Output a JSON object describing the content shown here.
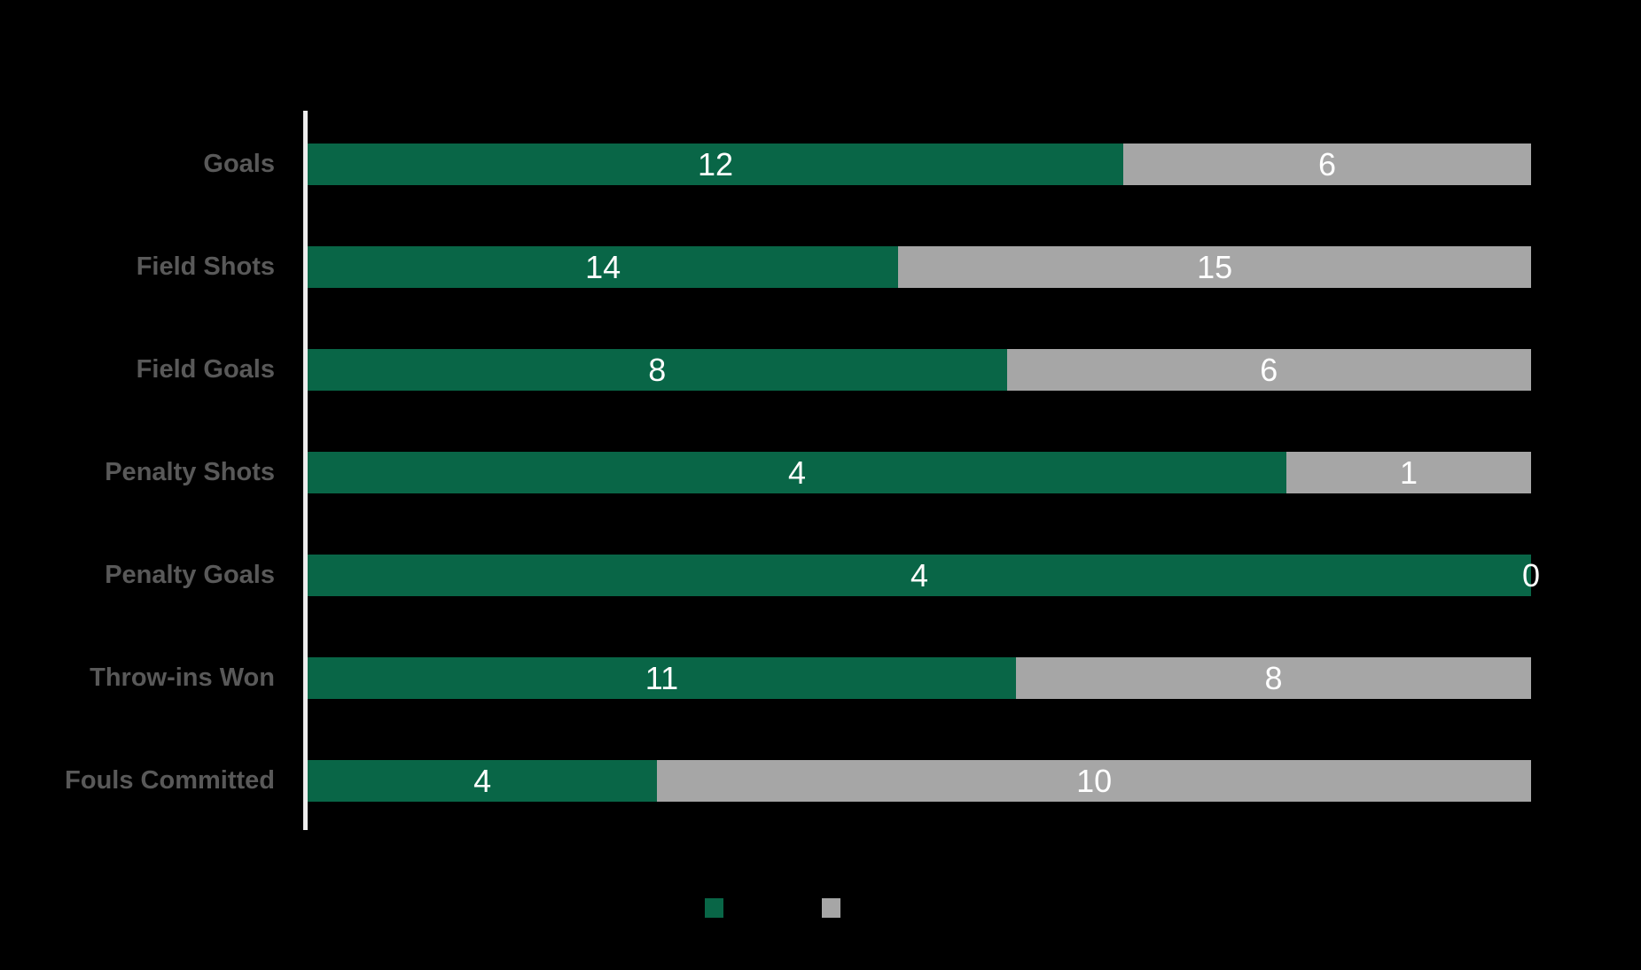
{
  "chart_data": {
    "type": "bar",
    "orientation": "horizontal",
    "stacked": "percent",
    "title": "",
    "categories": [
      "Goals",
      "Field Shots",
      "Field Goals",
      "Penalty Shots",
      "Penalty Goals",
      "Throw-ins Won",
      "Fouls Committed"
    ],
    "series": [
      {
        "label": "",
        "color": "#096647",
        "values": [
          12,
          14,
          8,
          4,
          4,
          11,
          4
        ]
      },
      {
        "label": "",
        "color": "#a6a6a6",
        "values": [
          6,
          15,
          6,
          1,
          0,
          8,
          10
        ]
      }
    ],
    "value_labels_position": "inside-center",
    "value_label_color": "#ffffff",
    "category_label_color": "#595959",
    "axis_line_color": "#ececec",
    "background_color": "#000000",
    "grid": false,
    "legend": {
      "position": "bottom-center",
      "swatch_colors": [
        "#096647",
        "#a6a6a6"
      ],
      "labels_visible": false
    }
  }
}
